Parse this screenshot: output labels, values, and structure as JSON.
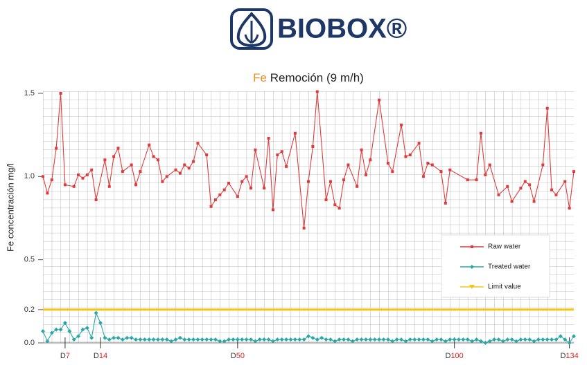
{
  "logo": "BIOBOX®",
  "chart_data": {
    "type": "line",
    "title": "Fe Remoción (9 m/h)",
    "y_label": "Fe concentración mg/l",
    "xlim": [
      0,
      120
    ],
    "xticks": [
      {
        "value": 5,
        "label": "D7"
      },
      {
        "value": 13,
        "label": "D14"
      },
      {
        "value": 44,
        "label": "D50"
      },
      {
        "value": 93,
        "label": "D100"
      },
      {
        "value": 119,
        "label": "D134"
      }
    ],
    "ylim": [
      0,
      1.5
    ],
    "yticks": [
      {
        "value": 0,
        "label": "0.0"
      },
      0.2,
      0.5,
      {
        "value": 1,
        "label": "1.0"
      },
      1.5
    ],
    "grid": true,
    "legend": "lower right",
    "series": [
      {
        "name": "Raw water",
        "color": "#e03a3a",
        "marker": "square",
        "x": [
          0,
          1,
          2,
          3,
          4,
          5,
          7,
          8,
          9,
          10,
          11,
          12,
          14,
          15,
          16,
          17,
          18,
          20,
          21,
          22,
          24,
          25,
          26,
          27,
          28,
          30,
          31,
          32,
          33,
          34,
          35,
          37,
          38,
          39,
          40,
          41,
          42,
          44,
          45,
          46,
          47,
          48,
          50,
          51,
          52,
          53,
          54,
          55,
          57,
          59,
          60,
          61,
          62,
          64,
          65,
          66,
          67,
          68,
          69,
          71,
          72,
          73,
          74,
          76,
          78,
          79,
          81,
          82,
          83,
          85,
          86,
          87,
          88,
          90,
          91,
          92,
          96,
          98,
          99,
          100,
          101,
          103,
          105,
          106,
          108,
          109,
          110,
          111,
          113,
          114,
          115,
          116,
          118,
          119,
          120
        ],
        "values": [
          1.0,
          0.9,
          0.98,
          1.17,
          1.5,
          0.95,
          0.94,
          1.01,
          0.99,
          1.01,
          1.04,
          0.86,
          1.1,
          0.94,
          1.12,
          1.17,
          1.03,
          1.07,
          0.95,
          1.03,
          1.19,
          1.12,
          1.1,
          0.97,
          1.0,
          1.04,
          1.02,
          1.07,
          1.05,
          1.09,
          1.2,
          1.13,
          0.82,
          0.86,
          0.89,
          0.92,
          0.96,
          0.88,
          0.97,
          1.0,
          0.93,
          1.16,
          0.93,
          1.23,
          0.8,
          1.13,
          1.15,
          1.06,
          1.26,
          0.69,
          0.97,
          1.18,
          1.51,
          0.86,
          0.97,
          0.83,
          0.81,
          0.98,
          1.07,
          0.94,
          1.16,
          1.01,
          1.1,
          1.46,
          1.08,
          1.03,
          1.31,
          1.12,
          1.13,
          1.2,
          1.0,
          1.08,
          1.07,
          1.03,
          0.84,
          1.04,
          0.98,
          0.98,
          1.26,
          1.01,
          1.07,
          0.89,
          0.94,
          0.85,
          0.93,
          0.97,
          0.95,
          0.85,
          1.07,
          1.41,
          0.92,
          0.89,
          0.97,
          0.81,
          1.03
        ]
      },
      {
        "name": "Treated water",
        "color": "#2aa7a7",
        "marker": "diamond",
        "x": [
          0,
          1,
          2,
          3,
          4,
          5,
          6,
          7,
          8,
          9,
          10,
          11,
          12,
          13,
          14,
          15,
          16,
          17,
          18,
          19,
          20,
          21,
          22,
          23,
          24,
          25,
          26,
          27,
          28,
          29,
          30,
          31,
          32,
          33,
          34,
          35,
          36,
          37,
          38,
          39,
          40,
          41,
          42,
          43,
          44,
          45,
          46,
          47,
          48,
          49,
          50,
          51,
          52,
          53,
          54,
          55,
          56,
          57,
          58,
          59,
          60,
          61,
          62,
          63,
          64,
          65,
          66,
          67,
          68,
          69,
          70,
          71,
          72,
          73,
          74,
          75,
          76,
          77,
          78,
          79,
          80,
          81,
          82,
          83,
          84,
          85,
          86,
          87,
          88,
          89,
          90,
          91,
          92,
          93,
          94,
          95,
          96,
          97,
          98,
          99,
          100,
          101,
          102,
          103,
          104,
          105,
          106,
          107,
          108,
          109,
          110,
          111,
          112,
          113,
          114,
          115,
          116,
          117,
          118,
          119,
          120
        ],
        "values": [
          0.07,
          0.01,
          0.06,
          0.08,
          0.08,
          0.12,
          0.07,
          0.02,
          0.04,
          0.08,
          0.09,
          0.03,
          0.18,
          0.12,
          0.03,
          0.02,
          0.03,
          0.03,
          0.02,
          0.03,
          0.03,
          0.02,
          0.02,
          0.02,
          0.02,
          0.02,
          0.02,
          0.02,
          0.02,
          0.01,
          0.02,
          0.03,
          0.02,
          0.02,
          0.02,
          0.02,
          0.02,
          0.02,
          0.02,
          0.02,
          0.01,
          0.01,
          0.02,
          0.02,
          0.02,
          0.02,
          0.02,
          0.02,
          0.01,
          0.02,
          0.02,
          0.02,
          0.01,
          0.02,
          0.02,
          0.02,
          0.02,
          0.02,
          0.02,
          0.02,
          0.04,
          0.03,
          0.02,
          0.03,
          0.02,
          0.02,
          0.01,
          0.02,
          0.02,
          0.02,
          0.01,
          0.02,
          0.02,
          0.02,
          0.02,
          0.02,
          0.02,
          0.02,
          0.02,
          0.01,
          0.02,
          0.02,
          0.01,
          0.02,
          0.02,
          0.02,
          0.02,
          0.02,
          0.01,
          0.02,
          0.02,
          0.01,
          0.02,
          0.02,
          0.02,
          0.02,
          0.02,
          0.01,
          0.02,
          0.01,
          0.0,
          0.01,
          0.02,
          0.02,
          0.01,
          0.02,
          0.02,
          0.01,
          0.02,
          0.02,
          0.02,
          0.01,
          0.02,
          0.02,
          0.02,
          0.02,
          0.02,
          0.04,
          0.02,
          0.0,
          0.04
        ]
      },
      {
        "name": "Limit value",
        "color": "#f5c518",
        "marker": "triangle",
        "x": [
          0,
          120
        ],
        "values": [
          0.2,
          0.2
        ]
      }
    ]
  }
}
